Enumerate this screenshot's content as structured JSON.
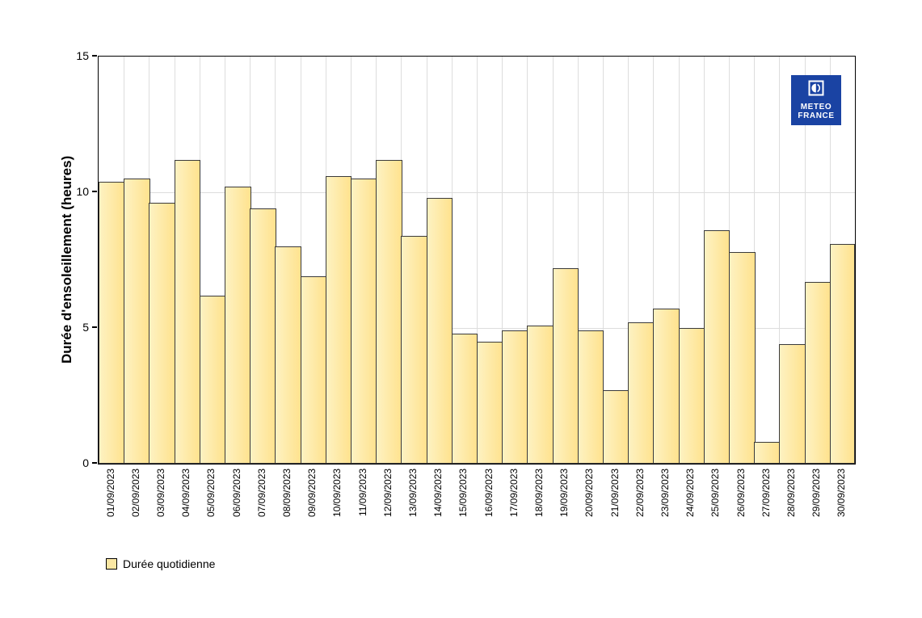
{
  "chart_data": {
    "type": "bar",
    "title": "",
    "xlabel": "",
    "ylabel": "Durée d'ensoleillement (heures)",
    "ylim": [
      0,
      15
    ],
    "yticks": [
      0,
      5,
      10,
      15
    ],
    "grid": "horizontal gridlines at 5 and 10, vertical gridlines at each category boundary",
    "legend_position": "bottom-left",
    "categories": [
      "01/09/2023",
      "02/09/2023",
      "03/09/2023",
      "04/09/2023",
      "05/09/2023",
      "06/09/2023",
      "07/09/2023",
      "08/09/2023",
      "09/09/2023",
      "10/09/2023",
      "11/09/2023",
      "12/09/2023",
      "13/09/2023",
      "14/09/2023",
      "15/09/2023",
      "16/09/2023",
      "17/09/2023",
      "18/09/2023",
      "19/09/2023",
      "20/09/2023",
      "21/09/2023",
      "22/09/2023",
      "23/09/2023",
      "24/09/2023",
      "25/09/2023",
      "26/09/2023",
      "27/09/2023",
      "28/09/2023",
      "29/09/2023",
      "30/09/2023"
    ],
    "values": [
      10.4,
      10.5,
      9.6,
      11.2,
      6.2,
      10.2,
      9.4,
      8.0,
      6.9,
      10.6,
      10.5,
      11.2,
      8.4,
      9.8,
      4.8,
      4.5,
      4.9,
      5.1,
      7.2,
      4.9,
      2.7,
      5.2,
      5.7,
      5.0,
      8.6,
      7.8,
      0.8,
      4.4,
      6.7,
      8.1
    ],
    "legend": {
      "label": "Durée quotidienne"
    },
    "colors": {
      "bar_gradient_left": "#FDF2C2",
      "bar_gradient_right": "#FFE28E",
      "bar_border": "#3A3A3A",
      "gridline": "#DDDDDD",
      "axis_frame": "#000000",
      "legend_swatch_fill": "#FAE7A3"
    }
  },
  "logo": {
    "line1": "METEO",
    "line2": "FRANCE",
    "background": "#1A43A3"
  }
}
